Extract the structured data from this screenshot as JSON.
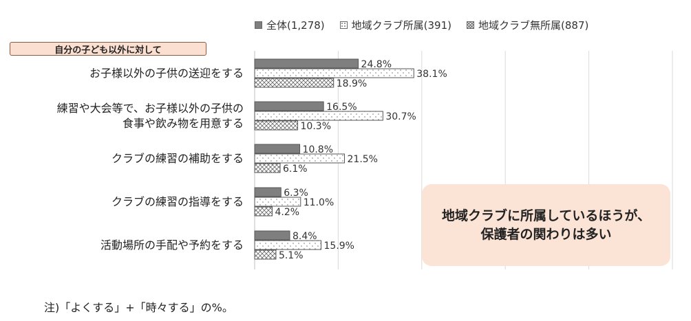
{
  "legend": {
    "all": "全体(1,278)",
    "club": "地域クラブ所属(391)",
    "noclub": "地域クラブ無所属(887)"
  },
  "section_tag": "自分の子ども以外に対して",
  "callout": {
    "line1": "地域クラブに所属しているほうが、",
    "line2": "保護者の関わりは多い"
  },
  "note": "注)「よくする」+「時々する」の%。",
  "colors": {
    "all_fill": "#7f7f7f",
    "bar_stroke": "#555555",
    "grid": "#d9d9d9",
    "callout_bg": "#fbe3d5",
    "tag_bg": "#fbe0d1"
  },
  "chart_data": {
    "type": "bar",
    "orientation": "horizontal",
    "categories": [
      [
        "お子様以外の子供の送迎をする"
      ],
      [
        "練習や大会等で、お子様以外の子供の",
        "食事や飲み物を用意する"
      ],
      [
        "クラブの練習の補助をする"
      ],
      [
        "クラブの練習の指導をする"
      ],
      [
        "活動場所の手配や予約をする"
      ]
    ],
    "series": [
      {
        "name": "全体(1,278)",
        "values": [
          24.8,
          16.5,
          10.8,
          6.3,
          8.4
        ],
        "labels": [
          "24.8%",
          "16.5%",
          "10.8%",
          "6.3%",
          "8.4%"
        ],
        "pattern": "solid"
      },
      {
        "name": "地域クラブ所属(391)",
        "values": [
          38.1,
          30.7,
          21.5,
          11.0,
          15.9
        ],
        "labels": [
          "38.1%",
          "30.7%",
          "21.5%",
          "11.0%",
          "15.9%"
        ],
        "pattern": "dots"
      },
      {
        "name": "地域クラブ無所属(887)",
        "values": [
          18.9,
          10.3,
          6.1,
          4.2,
          5.1
        ],
        "labels": [
          "18.9%",
          "10.3%",
          "6.1%",
          "4.2%",
          "5.1%"
        ],
        "pattern": "crosshatch"
      }
    ],
    "xlim": [
      0,
      100
    ],
    "grid": true,
    "legend_position": "top"
  }
}
